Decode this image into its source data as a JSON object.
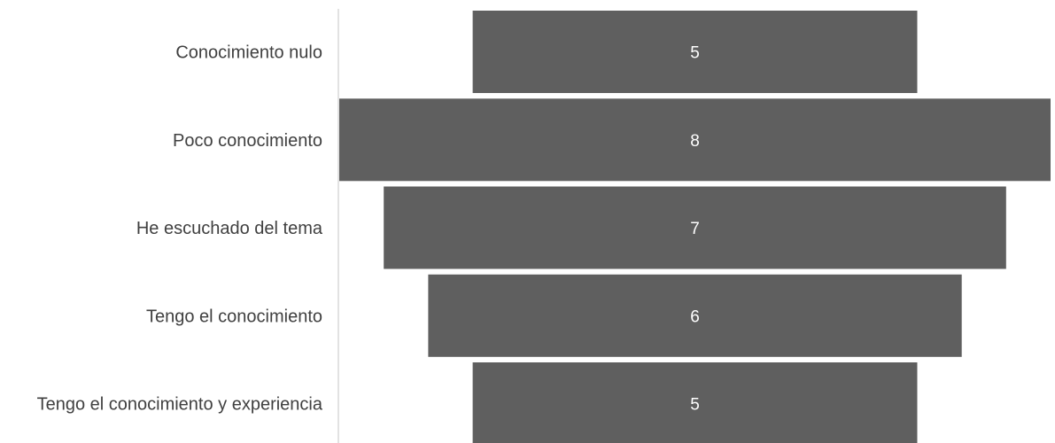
{
  "chart_data": {
    "type": "bar",
    "orientation": "horizontal",
    "style": "funnel",
    "categories": [
      "Conocimiento nulo",
      "Poco conocimiento",
      "He escuchado del tema",
      "Tengo el conocimiento",
      "Tengo el conocimiento y experiencia"
    ],
    "values": [
      5,
      8,
      7,
      6,
      5
    ],
    "title": "",
    "xlabel": "",
    "ylabel": "",
    "grid": false,
    "legend": "none",
    "data_labels": true,
    "colors": {
      "bar": "#5f5f5f",
      "axis_line": "#d9d9d9",
      "category_text": "#404040",
      "value_text": "#ffffff"
    }
  }
}
